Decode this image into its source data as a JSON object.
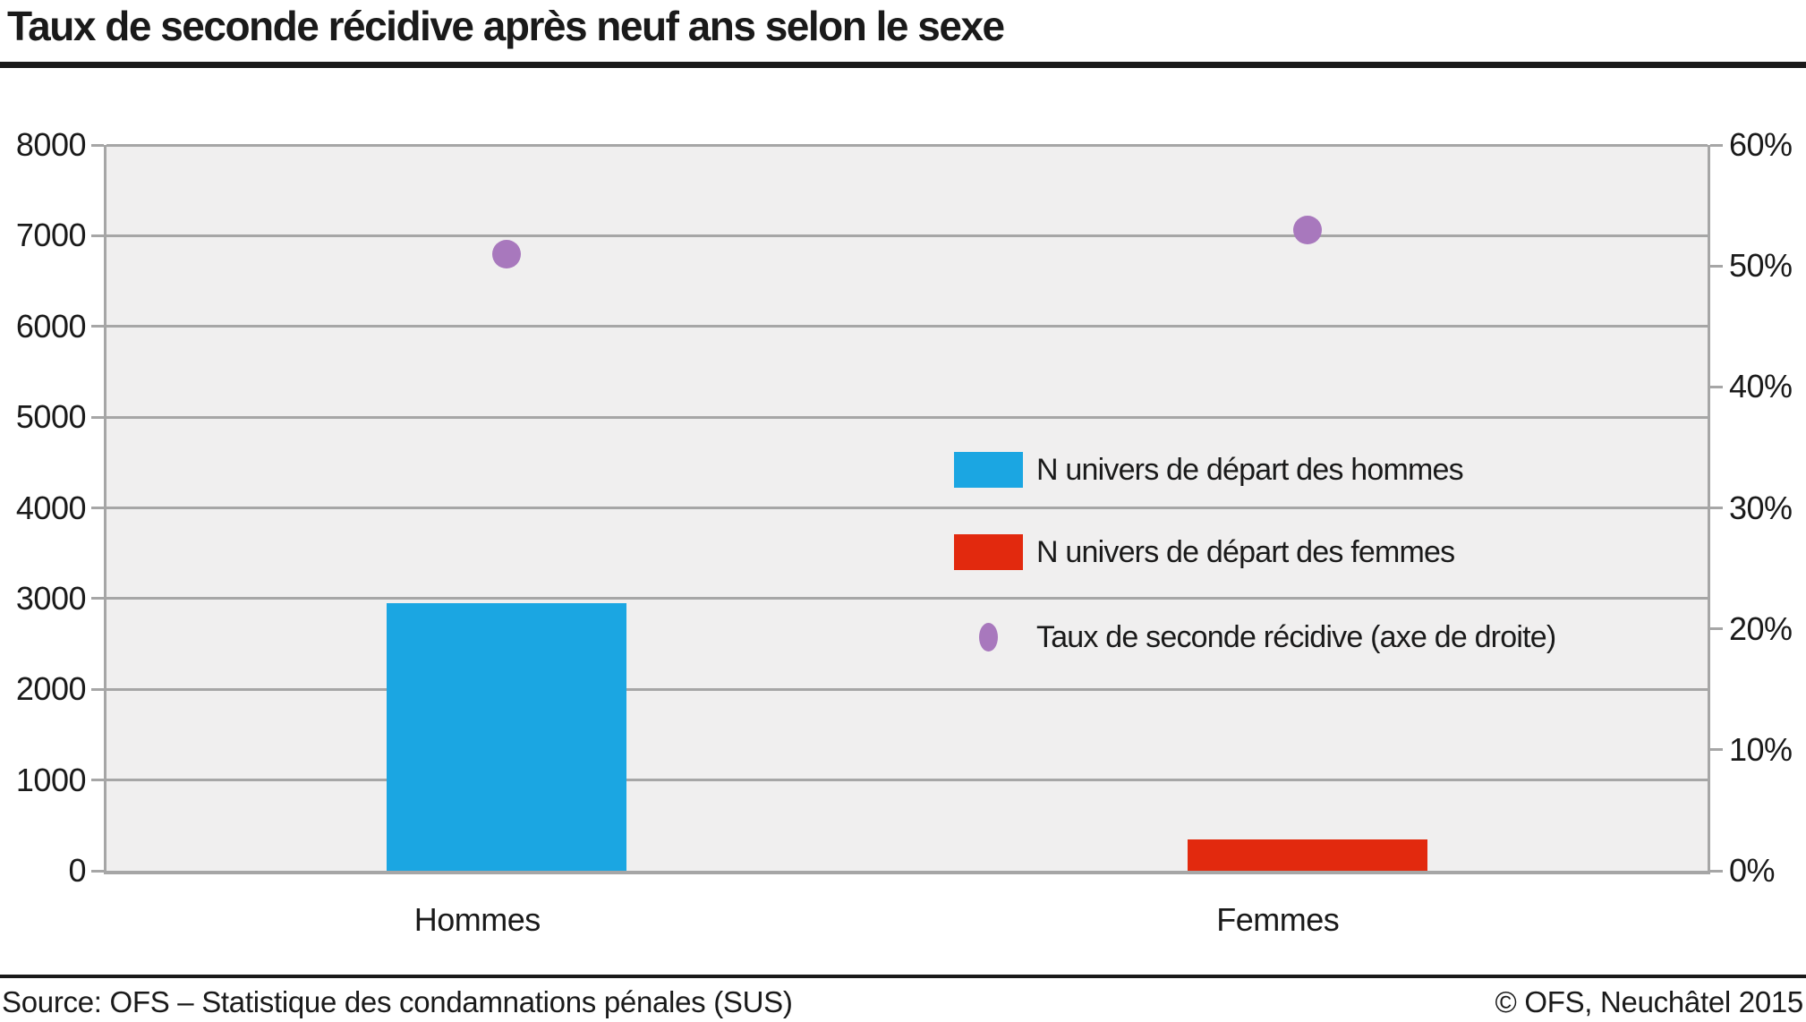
{
  "title": "Taux de seconde récidive après neuf ans selon le sexe",
  "footer": {
    "source": "Source: OFS – Statistique des condamnations pénales (SUS)",
    "copyright": "© OFS, Neuchâtel 2015"
  },
  "colors": {
    "bar_hommes": "#1BA6E2",
    "bar_femmes": "#E2290E",
    "dot_taux": "#A878BD",
    "plot_background": "#F0EFEF",
    "grid": "#A6A6A6",
    "rule": "#1A1A1A"
  },
  "chart_data": {
    "type": "bar",
    "title": "Taux de seconde récidive après neuf ans selon le sexe",
    "categories": [
      "Hommes",
      "Femmes"
    ],
    "series": [
      {
        "name": "N univers de départ des hommes",
        "type": "bar",
        "axis": "left",
        "color_key": "bar_hommes",
        "values": [
          2950,
          null
        ]
      },
      {
        "name": "N univers de départ des femmes",
        "type": "bar",
        "axis": "left",
        "color_key": "bar_femmes",
        "values": [
          null,
          350
        ]
      },
      {
        "name": "Taux de seconde récidive (axe de droite)",
        "type": "scatter",
        "axis": "right",
        "color_key": "dot_taux",
        "values": [
          51,
          53
        ]
      }
    ],
    "left_axis": {
      "min": 0,
      "max": 8000,
      "ticks": [
        "0",
        "1000",
        "2000",
        "3000",
        "4000",
        "5000",
        "6000",
        "7000",
        "8000"
      ]
    },
    "right_axis": {
      "min": 0,
      "max": 60,
      "ticks": [
        "0%",
        "10%",
        "20%",
        "30%",
        "40%",
        "50%",
        "60%"
      ]
    },
    "grid": true,
    "legend_position": "inside-right"
  }
}
